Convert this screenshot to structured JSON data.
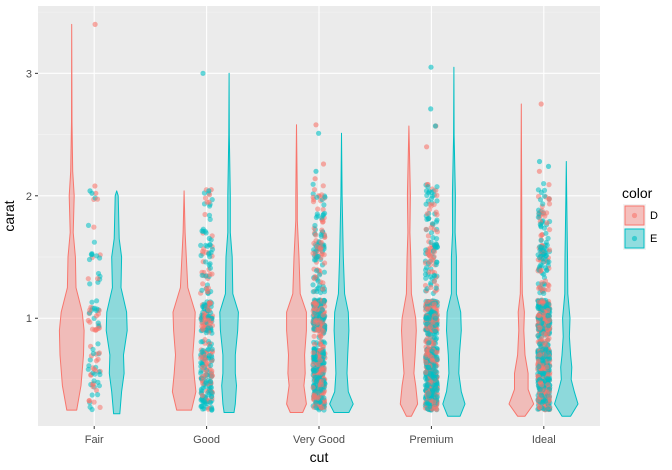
{
  "chart_data": {
    "type": "violin",
    "xlabel": "cut",
    "ylabel": "carat",
    "categories": [
      "Fair",
      "Good",
      "Very Good",
      "Premium",
      "Ideal"
    ],
    "y_ticks": [
      1,
      2,
      3
    ],
    "ylim": [
      0.12,
      3.55
    ],
    "grid": true,
    "legend": {
      "title": "color",
      "position": "right"
    },
    "series": [
      {
        "name": "D",
        "color": "#F8766D",
        "violins": [
          {
            "category": "Fair",
            "min": 0.25,
            "max": 3.4,
            "profile": [
              [
                0.25,
                0.4
              ],
              [
                0.45,
                0.75
              ],
              [
                0.7,
                0.95
              ],
              [
                0.9,
                1.0
              ],
              [
                1.05,
                0.85
              ],
              [
                1.25,
                0.35
              ],
              [
                1.5,
                0.3
              ],
              [
                1.7,
                0.12
              ],
              [
                2.0,
                0.2
              ],
              [
                2.2,
                0.08
              ],
              [
                2.6,
                0.02
              ],
              [
                3.4,
                0.0
              ]
            ]
          },
          {
            "category": "Good",
            "min": 0.25,
            "max": 2.04,
            "profile": [
              [
                0.25,
                0.6
              ],
              [
                0.4,
                0.95
              ],
              [
                0.55,
                0.8
              ],
              [
                0.7,
                0.7
              ],
              [
                0.9,
                0.85
              ],
              [
                1.05,
                0.9
              ],
              [
                1.25,
                0.3
              ],
              [
                1.5,
                0.18
              ],
              [
                1.7,
                0.08
              ],
              [
                2.04,
                0.0
              ]
            ]
          },
          {
            "category": "Very Good",
            "min": 0.23,
            "max": 2.58,
            "profile": [
              [
                0.23,
                0.5
              ],
              [
                0.3,
                0.8
              ],
              [
                0.45,
                0.6
              ],
              [
                0.55,
                0.7
              ],
              [
                0.7,
                0.65
              ],
              [
                0.9,
                0.8
              ],
              [
                1.05,
                0.8
              ],
              [
                1.2,
                0.3
              ],
              [
                1.5,
                0.2
              ],
              [
                1.8,
                0.06
              ],
              [
                2.0,
                0.06
              ],
              [
                2.58,
                0.0
              ]
            ]
          },
          {
            "category": "Premium",
            "min": 0.2,
            "max": 2.57,
            "profile": [
              [
                0.2,
                0.2
              ],
              [
                0.3,
                0.7
              ],
              [
                0.45,
                0.55
              ],
              [
                0.55,
                0.4
              ],
              [
                0.7,
                0.5
              ],
              [
                0.9,
                0.6
              ],
              [
                1.0,
                0.55
              ],
              [
                1.2,
                0.2
              ],
              [
                1.5,
                0.15
              ],
              [
                1.7,
                0.08
              ],
              [
                2.0,
                0.12
              ],
              [
                2.57,
                0.0
              ]
            ]
          },
          {
            "category": "Ideal",
            "min": 0.2,
            "max": 2.75,
            "profile": [
              [
                0.2,
                0.3
              ],
              [
                0.3,
                1.0
              ],
              [
                0.35,
                0.8
              ],
              [
                0.42,
                0.55
              ],
              [
                0.55,
                0.55
              ],
              [
                0.7,
                0.3
              ],
              [
                0.9,
                0.2
              ],
              [
                1.05,
                0.25
              ],
              [
                1.2,
                0.08
              ],
              [
                1.5,
                0.05
              ],
              [
                2.0,
                0.03
              ],
              [
                2.75,
                0.0
              ]
            ]
          }
        ]
      },
      {
        "name": "E",
        "color": "#00BFC4",
        "violins": [
          {
            "category": "Fair",
            "min": 0.22,
            "max": 2.04,
            "profile": [
              [
                0.22,
                0.25
              ],
              [
                0.4,
                0.4
              ],
              [
                0.55,
                0.6
              ],
              [
                0.7,
                0.55
              ],
              [
                0.9,
                0.85
              ],
              [
                1.05,
                0.8
              ],
              [
                1.25,
                0.35
              ],
              [
                1.5,
                0.4
              ],
              [
                1.65,
                0.2
              ],
              [
                2.0,
                0.12
              ],
              [
                2.04,
                0.0
              ]
            ]
          },
          {
            "category": "Good",
            "min": 0.23,
            "max": 3.0,
            "profile": [
              [
                0.23,
                0.4
              ],
              [
                0.3,
                0.5
              ],
              [
                0.45,
                0.6
              ],
              [
                0.55,
                0.5
              ],
              [
                0.7,
                0.5
              ],
              [
                0.9,
                0.7
              ],
              [
                1.05,
                0.75
              ],
              [
                1.2,
                0.3
              ],
              [
                1.5,
                0.25
              ],
              [
                1.7,
                0.1
              ],
              [
                2.0,
                0.1
              ],
              [
                2.5,
                0.02
              ],
              [
                3.0,
                0.0
              ]
            ]
          },
          {
            "category": "Very Good",
            "min": 0.23,
            "max": 2.51,
            "profile": [
              [
                0.23,
                0.6
              ],
              [
                0.3,
                0.95
              ],
              [
                0.4,
                0.55
              ],
              [
                0.55,
                0.45
              ],
              [
                0.7,
                0.5
              ],
              [
                0.9,
                0.6
              ],
              [
                1.05,
                0.55
              ],
              [
                1.2,
                0.25
              ],
              [
                1.5,
                0.15
              ],
              [
                2.0,
                0.05
              ],
              [
                2.51,
                0.0
              ]
            ]
          },
          {
            "category": "Premium",
            "min": 0.2,
            "max": 3.05,
            "profile": [
              [
                0.2,
                0.5
              ],
              [
                0.3,
                0.9
              ],
              [
                0.4,
                0.6
              ],
              [
                0.55,
                0.4
              ],
              [
                0.7,
                0.45
              ],
              [
                0.9,
                0.6
              ],
              [
                1.05,
                0.55
              ],
              [
                1.2,
                0.2
              ],
              [
                1.5,
                0.2
              ],
              [
                1.7,
                0.1
              ],
              [
                2.0,
                0.12
              ],
              [
                2.5,
                0.02
              ],
              [
                3.05,
                0.0
              ]
            ]
          },
          {
            "category": "Ideal",
            "min": 0.2,
            "max": 2.28,
            "profile": [
              [
                0.2,
                0.35
              ],
              [
                0.3,
                0.95
              ],
              [
                0.4,
                0.65
              ],
              [
                0.5,
                0.4
              ],
              [
                0.6,
                0.45
              ],
              [
                0.7,
                0.35
              ],
              [
                0.85,
                0.25
              ],
              [
                1.0,
                0.3
              ],
              [
                1.2,
                0.12
              ],
              [
                1.5,
                0.1
              ],
              [
                2.0,
                0.03
              ],
              [
                2.28,
                0.0
              ]
            ]
          }
        ]
      }
    ],
    "jitter_points": [
      {
        "category": "Fair",
        "count": 90,
        "min": 0.22,
        "max": 2.08,
        "outliers_D": [
          3.4,
          2.08,
          2.02
        ],
        "outliers_E": [
          2.04,
          2.02
        ]
      },
      {
        "category": "Good",
        "count": 320,
        "min": 0.23,
        "max": 2.05,
        "outliers_D": [
          2.05,
          2.01
        ],
        "outliers_E": [
          3.0,
          2.04
        ]
      },
      {
        "category": "Very Good",
        "count": 620,
        "min": 0.23,
        "max": 2.2,
        "outliers_D": [
          2.58,
          2.26,
          2.14
        ],
        "outliers_E": [
          2.51,
          2.2
        ]
      },
      {
        "category": "Premium",
        "count": 720,
        "min": 0.2,
        "max": 2.1,
        "outliers_D": [
          2.57,
          2.4
        ],
        "outliers_E": [
          3.05,
          2.71,
          2.57
        ]
      },
      {
        "category": "Ideal",
        "count": 780,
        "min": 0.2,
        "max": 2.1,
        "outliers_D": [
          2.75,
          2.2
        ],
        "outliers_E": [
          2.28,
          2.24
        ]
      }
    ]
  }
}
